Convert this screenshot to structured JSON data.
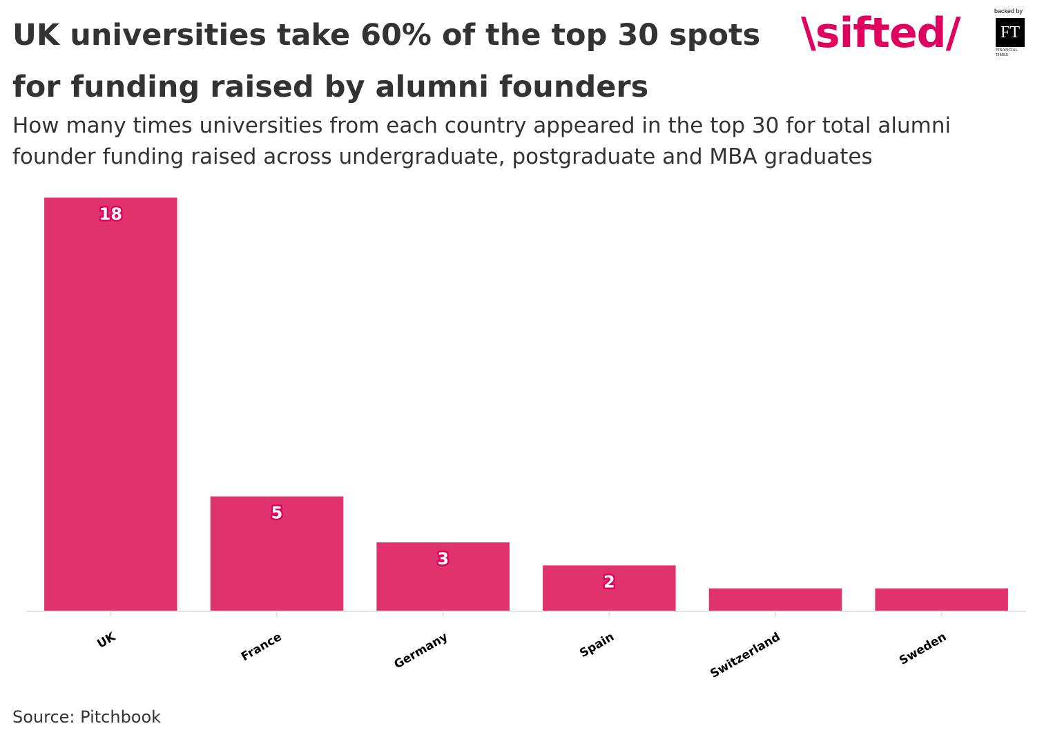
{
  "header": {
    "title": "UK universities take 60% of the top 30 spots for funding raised by alumni founders",
    "subtitle": "How many times universities from each country appeared in the top 30 for total alumni founder funding raised across undergraduate, postgraduate and MBA graduates"
  },
  "brand": {
    "logo_text": "\\sifted/",
    "backed_by": "backed by",
    "ft_mark": "FT",
    "ft_name": "FINANCIAL TIMES"
  },
  "footer": {
    "source": "Source: Pitchbook"
  },
  "colors": {
    "bar": "#e0336d",
    "label_outline": "#e0005d",
    "axis": "#e6e6e6",
    "brand": "#e0005d"
  },
  "chart_data": {
    "type": "bar",
    "categories": [
      "UK",
      "France",
      "Germany",
      "Spain",
      "Switzerland",
      "Sweden"
    ],
    "values": [
      18,
      5,
      3,
      2,
      1,
      1
    ],
    "data_labels": [
      "18",
      "5",
      "3",
      "2",
      "",
      ""
    ],
    "ylim": [
      0,
      18
    ],
    "grid": false,
    "legend": "none",
    "xlabel": "",
    "ylabel": ""
  }
}
